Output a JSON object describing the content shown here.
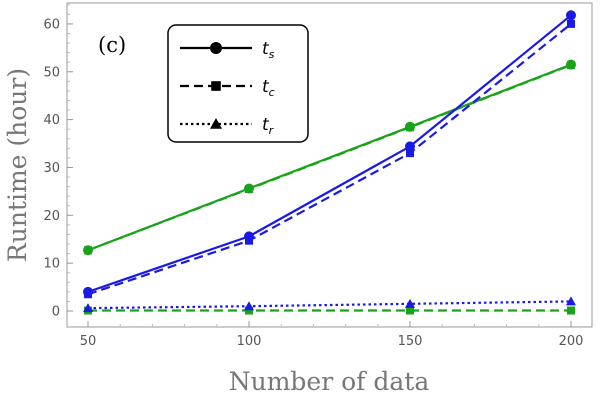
{
  "chart_data": {
    "type": "line",
    "panel_label": "(c)",
    "xlabel": "Number of data",
    "ylabel": "Runtime (hour)",
    "x": [
      50,
      100,
      150,
      200
    ],
    "xlim": [
      50,
      200
    ],
    "ylim": [
      0,
      65
    ],
    "xticks": [
      50,
      100,
      150,
      200
    ],
    "yticks": [
      0,
      10,
      20,
      30,
      40,
      50,
      60
    ],
    "grid": false,
    "legend_position": "top-left",
    "legend": [
      {
        "symbol": "t",
        "subscript": "s",
        "dash": "solid",
        "marker": "circle"
      },
      {
        "symbol": "t",
        "subscript": "c",
        "dash": "dashed",
        "marker": "square"
      },
      {
        "symbol": "t",
        "subscript": "r",
        "dash": "dotted",
        "marker": "triangle"
      }
    ],
    "series": [
      {
        "color": "#1aa31a",
        "dash": "solid",
        "marker": "circle",
        "values": [
          12.7,
          25.6,
          38.5,
          51.5
        ]
      },
      {
        "color": "#1aa31a",
        "dash": "dashed",
        "marker": "square",
        "values": [
          12.7,
          25.5,
          38.4,
          51.4
        ]
      },
      {
        "color": "#1aa31a",
        "dash": "dashed",
        "marker": "square",
        "values": [
          0.1,
          0.1,
          0.1,
          0.1
        ]
      },
      {
        "color": "#1a1ae6",
        "dash": "solid",
        "marker": "circle",
        "values": [
          4.0,
          15.6,
          34.4,
          61.8
        ]
      },
      {
        "color": "#1a1ae6",
        "dash": "dashed",
        "marker": "square",
        "values": [
          3.5,
          14.7,
          33.0,
          60.0
        ]
      },
      {
        "color": "#1a1ae6",
        "dash": "dotted",
        "marker": "triangle",
        "values": [
          0.6,
          1.0,
          1.5,
          2.0
        ]
      }
    ]
  }
}
